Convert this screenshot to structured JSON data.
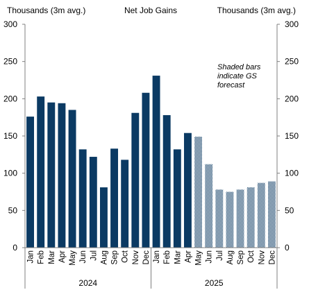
{
  "chart_data": {
    "type": "bar",
    "title": "Net Job Gains",
    "ylabel_left": "Thousands  (3m avg.)",
    "ylabel_right": "Thousands  (3m avg.)",
    "ylim": [
      0,
      300
    ],
    "yticks": [
      0,
      50,
      100,
      150,
      200,
      250,
      300
    ],
    "yticks_right": [
      0,
      50,
      100,
      150,
      200,
      250,
      300
    ],
    "categories": [
      "Jan",
      "Feb",
      "Mar",
      "Apr",
      "May",
      "Jun",
      "Jul",
      "Aug",
      "Sep",
      "Oct",
      "Nov",
      "Dec",
      "Jan",
      "Feb",
      "Mar",
      "Apr",
      "May",
      "Jun",
      "Jul",
      "Aug",
      "Sep",
      "Oct",
      "Nov",
      "Dec"
    ],
    "years": [
      {
        "label": "2024",
        "start": 0,
        "end": 11
      },
      {
        "label": "2025",
        "start": 12,
        "end": 23
      }
    ],
    "values": [
      176,
      203,
      195,
      194,
      185,
      132,
      122,
      81,
      133,
      118,
      181,
      208,
      231,
      178,
      132,
      154,
      149,
      112,
      78,
      75,
      78,
      81,
      87,
      89
    ],
    "forecast_from_index": 16,
    "annotation": [
      "Shaded bars",
      "indicate GS",
      "forecast"
    ],
    "grid": false,
    "colors": {
      "actual": "#0b3a63",
      "forecast": "#0b3a63",
      "axis": "#7f7f7f"
    }
  }
}
